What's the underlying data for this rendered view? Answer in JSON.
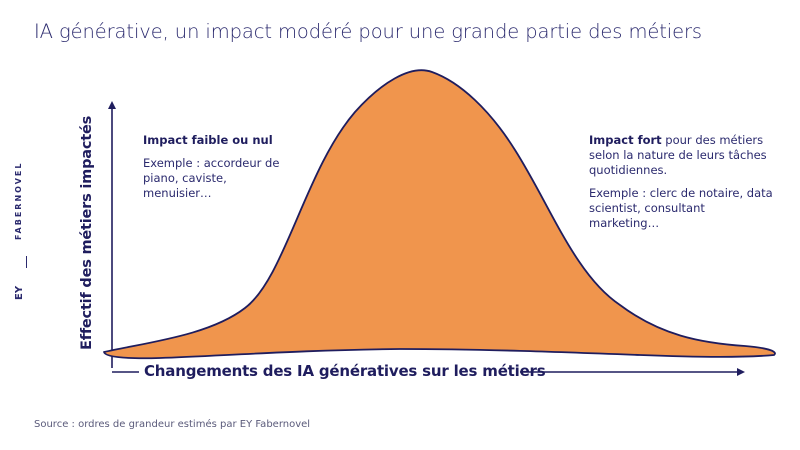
{
  "title": "IA générative, un impact modéré pour une grande partie des métiers",
  "brand": {
    "fabernovel": "FABERNOVEL",
    "ey": "EY"
  },
  "colors": {
    "fill": "#f0954d",
    "outline": "#1f1d5e",
    "text": "#2b2a6e"
  },
  "annotations": {
    "low": {
      "heading": "Impact faible ou nul",
      "example": "Exemple : accordeur de piano, caviste, menuisier…"
    },
    "high": {
      "heading": "Impact fort",
      "text": " pour des métiers selon la nature de leurs tâches quotidiennes.",
      "example": "Exemple : clerc de notaire, data scientist, consultant marketing…"
    }
  },
  "source": "Source : ordres de grandeur estimés par EY Fabernovel",
  "chart_data": {
    "type": "area",
    "title": "IA générative, un impact modéré pour une grande partie des métiers",
    "xlabel": "Changements des IA génératives sur les métiers",
    "ylabel": "Effectif des métiers impactés",
    "x_ticks": false,
    "y_ticks": false,
    "grid": false,
    "legend": "none",
    "shape": "bell curve (normal-like distribution of job impact)"
  }
}
